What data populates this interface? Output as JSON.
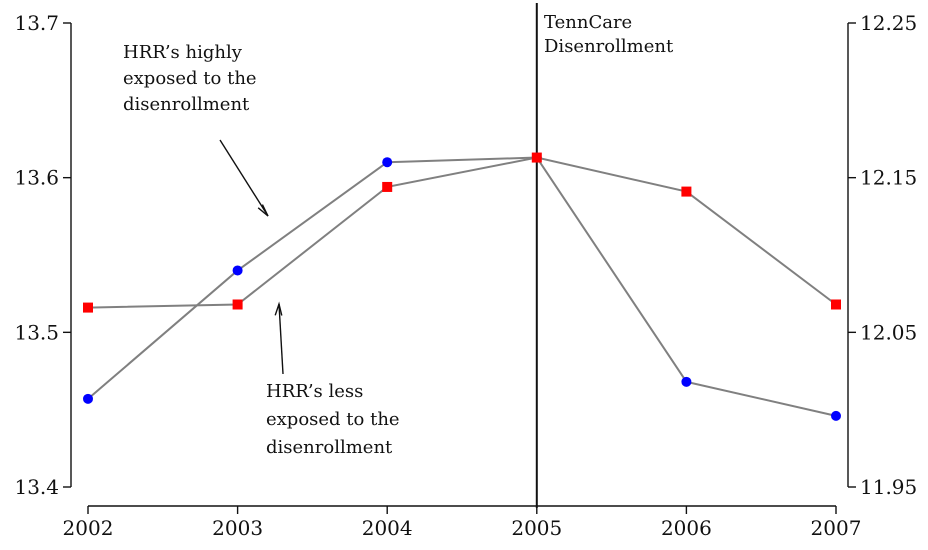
{
  "chart_data": {
    "type": "line",
    "x": [
      2002,
      2003,
      2004,
      2005,
      2006,
      2007
    ],
    "x_tick_labels": [
      "2002",
      "2003",
      "2004",
      "2005",
      "2006",
      "2007"
    ],
    "y_left": {
      "ylim": [
        13.4,
        13.7
      ],
      "ticks": [
        "13.4",
        "13.5",
        "13.6",
        "13.7"
      ]
    },
    "y_right": {
      "ylim": [
        11.95,
        12.25
      ],
      "ticks": [
        "11.95",
        "12.05",
        "12.15",
        "12.25"
      ]
    },
    "series": [
      {
        "axis": "left",
        "marker": "circle",
        "color": "#0000ff",
        "values": [
          13.457,
          13.54,
          13.61,
          13.613,
          13.468,
          13.446
        ]
      },
      {
        "axis": "right",
        "marker": "square",
        "color": "#ff0000",
        "values": [
          12.066,
          12.068,
          12.144,
          12.163,
          12.141,
          12.068
        ]
      }
    ],
    "line_color": "#808080",
    "event_line": {
      "x": 2005,
      "label_lines": [
        "TennCare",
        "Disenrollment"
      ]
    },
    "annotations": [
      {
        "lines": [
          "HRR’s highly",
          "exposed to the",
          "disenrollment"
        ]
      },
      {
        "lines": [
          "HRR’s less",
          "exposed to the",
          "disenrollment"
        ]
      }
    ],
    "grid": false
  }
}
